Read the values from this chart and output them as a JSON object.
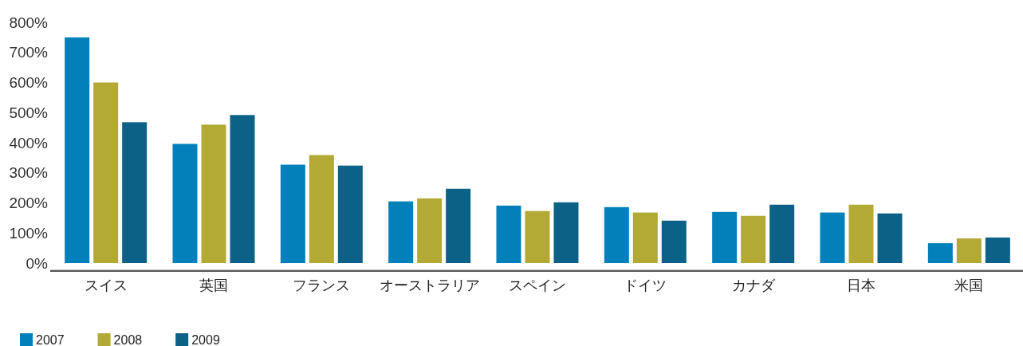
{
  "chart_data": {
    "type": "bar",
    "categories": [
      "スイス",
      "英国",
      "フランス",
      "オーストラリア",
      "スペイン",
      "ドイツ",
      "カナダ",
      "日本",
      "米国"
    ],
    "series": [
      {
        "name": "2007",
        "color": "#0280b9",
        "values": [
          750,
          396,
          327,
          205,
          191,
          186,
          170,
          168,
          66
        ]
      },
      {
        "name": "2008",
        "color": "#b3aa36",
        "values": [
          600,
          460,
          359,
          215,
          173,
          168,
          157,
          194,
          82
        ]
      },
      {
        "name": "2009",
        "color": "#0c6186",
        "values": [
          468,
          492,
          324,
          247,
          202,
          141,
          194,
          165,
          85
        ]
      }
    ],
    "ylim": [
      0,
      800
    ],
    "yticks": [
      {
        "value": 0,
        "label": "0%"
      },
      {
        "value": 100,
        "label": "100%"
      },
      {
        "value": 200,
        "label": "200%"
      },
      {
        "value": 300,
        "label": "300%"
      },
      {
        "value": 400,
        "label": "400%"
      },
      {
        "value": 500,
        "label": "500%"
      },
      {
        "value": 600,
        "label": "600%"
      },
      {
        "value": 700,
        "label": "700%"
      },
      {
        "value": 800,
        "label": "800%"
      }
    ],
    "grid": false,
    "legend": "bottom"
  }
}
